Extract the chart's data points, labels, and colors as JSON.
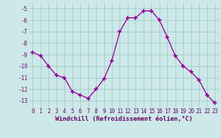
{
  "x": [
    0,
    1,
    2,
    3,
    4,
    5,
    6,
    7,
    8,
    9,
    10,
    11,
    12,
    13,
    14,
    15,
    16,
    17,
    18,
    19,
    20,
    21,
    22,
    23
  ],
  "y": [
    -8.8,
    -9.1,
    -10.0,
    -10.8,
    -11.0,
    -12.2,
    -12.5,
    -12.8,
    -12.0,
    -11.1,
    -9.5,
    -7.0,
    -5.8,
    -5.8,
    -5.2,
    -5.2,
    -6.0,
    -7.5,
    -9.1,
    -10.0,
    -10.5,
    -11.2,
    -12.5,
    -13.2
  ],
  "xlabel": "Windchill (Refroidissement éolien,°C)",
  "xlim": [
    -0.5,
    23.5
  ],
  "ylim": [
    -13.6,
    -4.5
  ],
  "yticks": [
    -5,
    -6,
    -7,
    -8,
    -9,
    -10,
    -11,
    -12,
    -13
  ],
  "xticks": [
    0,
    1,
    2,
    3,
    4,
    5,
    6,
    7,
    8,
    9,
    10,
    11,
    12,
    13,
    14,
    15,
    16,
    17,
    18,
    19,
    20,
    21,
    22,
    23
  ],
  "line_color": "#990099",
  "marker": "+",
  "bg_color": "#cce8e8",
  "grid_color": "#aacccc",
  "text_color": "#660066",
  "xlabel_fontsize": 6.5,
  "tick_fontsize": 5.5
}
